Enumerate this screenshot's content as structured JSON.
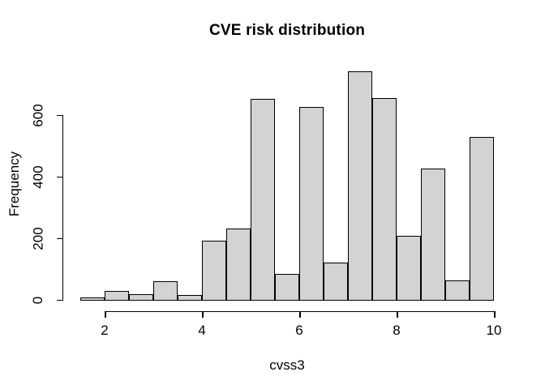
{
  "chart_data": {
    "type": "bar",
    "subtype": "histogram",
    "title": "CVE risk distribution",
    "xlabel": "cvss3",
    "ylabel": "Frequency",
    "bin_edges": [
      1.5,
      2.0,
      2.5,
      3.0,
      3.5,
      4.0,
      4.5,
      5.0,
      5.5,
      6.0,
      6.5,
      7.0,
      7.5,
      8.0,
      8.5,
      9.0,
      9.5,
      10.0
    ],
    "counts": [
      2,
      23,
      12,
      54,
      10,
      186,
      227,
      648,
      78,
      621,
      115,
      736,
      650,
      203,
      421,
      58,
      525
    ],
    "x_ticks": [
      2,
      4,
      6,
      8,
      10
    ],
    "y_ticks": [
      0,
      200,
      400,
      600
    ],
    "xlim": [
      1.5,
      10
    ],
    "ylim": [
      0,
      740
    ],
    "grid": false,
    "legend_position": "none",
    "bar_fill": "#d3d3d3",
    "bar_stroke": "#000000",
    "background_color": "#ffffff",
    "text_color": "#000000"
  }
}
